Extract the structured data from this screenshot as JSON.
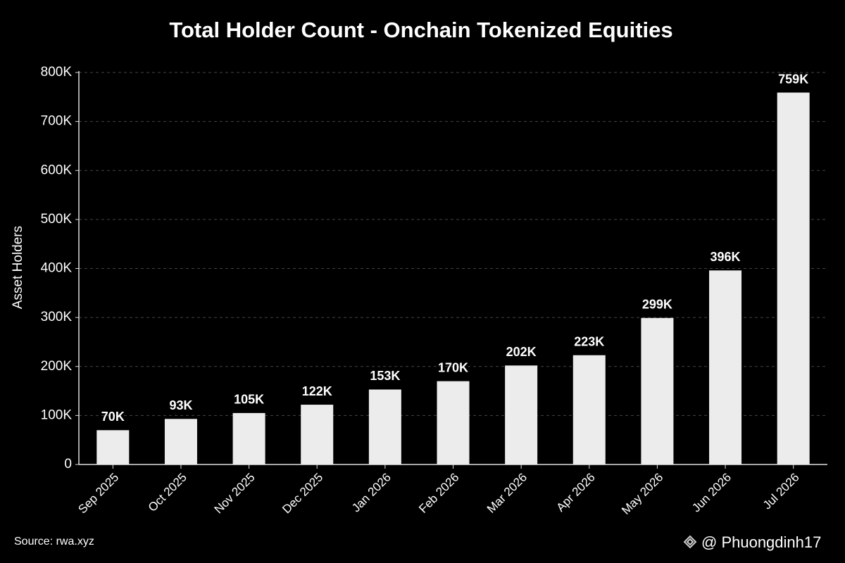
{
  "chart_data": {
    "type": "bar",
    "title": "Total Holder Count - Onchain Tokenized Equities",
    "y_label": "Asset Holders",
    "categories": [
      "Sep 2025",
      "Oct 2025",
      "Nov 2025",
      "Dec 2025",
      "Jan 2026",
      "Feb 2026",
      "Mar 2026",
      "Apr 2026",
      "May 2026",
      "Jun 2026",
      "Jul 2026"
    ],
    "values": [
      70000,
      93000,
      105000,
      122000,
      153000,
      170000,
      202000,
      223000,
      299000,
      396000,
      759000
    ],
    "value_labels": [
      "70K",
      "93K",
      "105K",
      "122K",
      "153K",
      "170K",
      "202K",
      "223K",
      "299K",
      "396K",
      "759K"
    ],
    "color": "#ececec",
    "ylim": [
      0,
      800000
    ],
    "yticks": [
      0,
      {
        "value": 100000,
        "label": "100K"
      },
      {
        "value": 200000,
        "label": "200K"
      },
      {
        "value": 300000,
        "label": "300K"
      },
      {
        "value": 400000,
        "label": "400K"
      },
      {
        "value": 500000,
        "label": "500K"
      },
      {
        "value": 600000,
        "label": "600K"
      },
      {
        "value": 700000,
        "label": "700K"
      },
      {
        "value": 800000,
        "label": "800K"
      }
    ],
    "grid": true,
    "source": "Source: rwa.xyz",
    "watermark": "@ Phuongdinh17"
  }
}
